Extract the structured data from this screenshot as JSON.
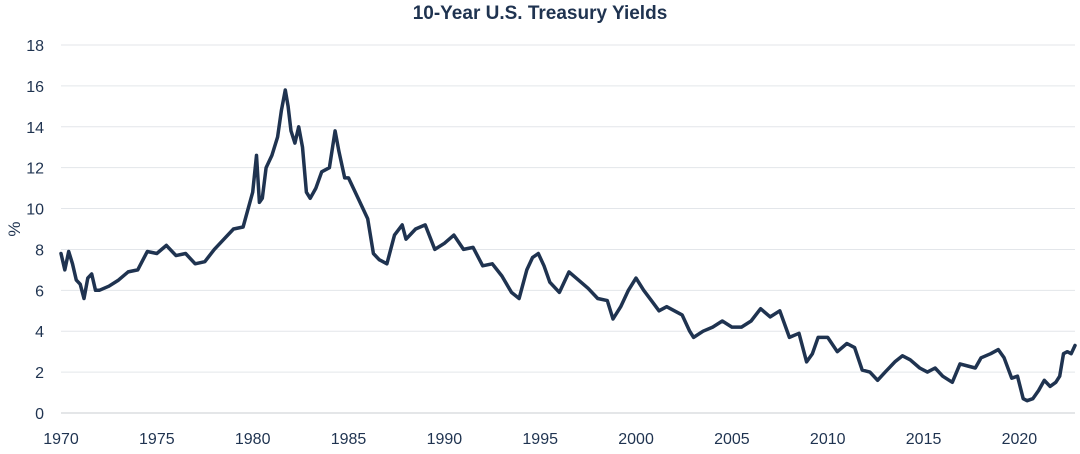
{
  "chart_data": {
    "type": "line",
    "title": "10-Year U.S. Treasury Yields",
    "xlabel": "",
    "ylabel": "%",
    "xlim": [
      1970,
      2022.9
    ],
    "ylim": [
      0,
      18
    ],
    "x_ticks": [
      "1970",
      "1975",
      "1980",
      "1985",
      "1990",
      "1995",
      "2000",
      "2005",
      "2010",
      "2015",
      "2020"
    ],
    "y_ticks": [
      "0",
      "2",
      "4",
      "6",
      "8",
      "10",
      "12",
      "14",
      "16",
      "18"
    ],
    "grid": true,
    "line_color": "#1f3350",
    "series": [
      {
        "name": "",
        "x": [
          1970.0,
          1970.2,
          1970.4,
          1970.6,
          1970.8,
          1971.0,
          1971.2,
          1971.4,
          1971.6,
          1971.8,
          1972.0,
          1972.5,
          1973.0,
          1973.5,
          1974.0,
          1974.5,
          1975.0,
          1975.5,
          1976.0,
          1976.5,
          1977.0,
          1977.5,
          1978.0,
          1978.5,
          1979.0,
          1979.5,
          1980.0,
          1980.2,
          1980.35,
          1980.5,
          1980.7,
          1981.0,
          1981.3,
          1981.5,
          1981.7,
          1981.85,
          1982.0,
          1982.2,
          1982.4,
          1982.6,
          1982.8,
          1983.0,
          1983.3,
          1983.6,
          1984.0,
          1984.3,
          1984.5,
          1984.8,
          1985.0,
          1985.5,
          1986.0,
          1986.3,
          1986.6,
          1987.0,
          1987.4,
          1987.8,
          1988.0,
          1988.5,
          1989.0,
          1989.5,
          1990.0,
          1990.5,
          1991.0,
          1991.5,
          1992.0,
          1992.5,
          1993.0,
          1993.5,
          1993.9,
          1994.3,
          1994.6,
          1994.9,
          1995.2,
          1995.5,
          1996.0,
          1996.5,
          1997.0,
          1997.5,
          1998.0,
          1998.5,
          1998.8,
          1999.2,
          1999.6,
          2000.0,
          2000.4,
          2000.8,
          2001.2,
          2001.6,
          2002.0,
          2002.4,
          2002.8,
          2003.0,
          2003.5,
          2004.0,
          2004.5,
          2005.0,
          2005.5,
          2006.0,
          2006.5,
          2007.0,
          2007.5,
          2008.0,
          2008.5,
          2008.9,
          2009.2,
          2009.5,
          2010.0,
          2010.5,
          2011.0,
          2011.4,
          2011.8,
          2012.2,
          2012.6,
          2013.0,
          2013.5,
          2013.9,
          2014.3,
          2014.8,
          2015.2,
          2015.6,
          2016.0,
          2016.5,
          2016.9,
          2017.3,
          2017.7,
          2018.0,
          2018.5,
          2018.9,
          2019.2,
          2019.6,
          2019.9,
          2020.2,
          2020.4,
          2020.7,
          2021.0,
          2021.3,
          2021.6,
          2021.9,
          2022.1,
          2022.3,
          2022.5,
          2022.7,
          2022.9
        ],
        "y": [
          7.8,
          7.0,
          7.9,
          7.3,
          6.5,
          6.3,
          5.6,
          6.6,
          6.8,
          6.0,
          6.0,
          6.2,
          6.5,
          6.9,
          7.0,
          7.9,
          7.8,
          8.2,
          7.7,
          7.8,
          7.3,
          7.4,
          8.0,
          8.5,
          9.0,
          9.1,
          10.8,
          12.6,
          10.3,
          10.5,
          12.0,
          12.6,
          13.5,
          14.8,
          15.8,
          15.0,
          13.8,
          13.2,
          14.0,
          13.0,
          10.8,
          10.5,
          11.0,
          11.8,
          12.0,
          13.8,
          12.8,
          11.5,
          11.5,
          10.5,
          9.5,
          7.8,
          7.5,
          7.3,
          8.7,
          9.2,
          8.5,
          9.0,
          9.2,
          8.0,
          8.3,
          8.7,
          8.0,
          8.1,
          7.2,
          7.3,
          6.7,
          5.9,
          5.6,
          7.0,
          7.6,
          7.8,
          7.2,
          6.4,
          5.9,
          6.9,
          6.5,
          6.1,
          5.6,
          5.5,
          4.6,
          5.2,
          6.0,
          6.6,
          6.0,
          5.5,
          5.0,
          5.2,
          5.0,
          4.8,
          4.0,
          3.7,
          4.0,
          4.2,
          4.5,
          4.2,
          4.2,
          4.5,
          5.1,
          4.7,
          5.0,
          3.7,
          3.9,
          2.5,
          2.9,
          3.7,
          3.7,
          3.0,
          3.4,
          3.2,
          2.1,
          2.0,
          1.6,
          2.0,
          2.5,
          2.8,
          2.6,
          2.2,
          2.0,
          2.2,
          1.8,
          1.5,
          2.4,
          2.3,
          2.2,
          2.7,
          2.9,
          3.1,
          2.7,
          1.7,
          1.8,
          0.7,
          0.6,
          0.7,
          1.1,
          1.6,
          1.3,
          1.5,
          1.8,
          2.9,
          3.0,
          2.9,
          3.3
        ]
      }
    ]
  }
}
